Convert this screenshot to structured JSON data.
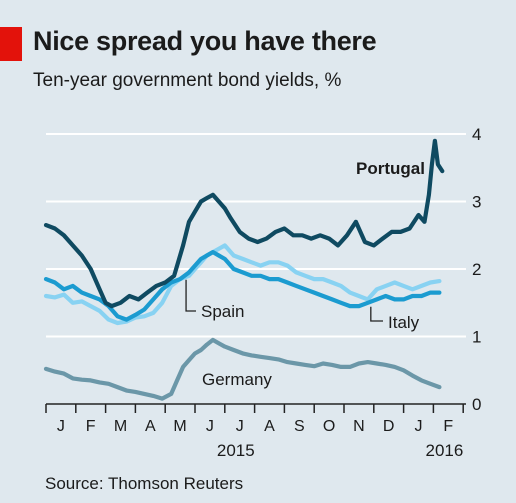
{
  "title": "Nice spread you have there",
  "subtitle": "Ten-year government bond yields, %",
  "source": "Source: Thomson Reuters",
  "colors": {
    "background": "#dfe8ee",
    "accent": "#e3120b",
    "gridline": "#ffffff",
    "Portugal": "#0f4a61",
    "Spain": "#88d2f2",
    "Italy": "#1b9bd0",
    "Germany": "#6b97a8"
  },
  "chart_data": {
    "type": "line",
    "title": "Nice spread you have there",
    "subtitle": "Ten-year government bond yields, %",
    "xlabel": "",
    "ylabel": "",
    "ylim": [
      0,
      4
    ],
    "yticks": [
      0,
      1,
      2,
      3,
      4
    ],
    "y_axis_position": "right",
    "grid": true,
    "x_ticks": [
      "J",
      "F",
      "M",
      "A",
      "M",
      "J",
      "J",
      "A",
      "S",
      "O",
      "N",
      "D",
      "J",
      "F"
    ],
    "x_year_labels": [
      {
        "label": "2015",
        "month_index": 6
      },
      {
        "label": "2016",
        "month_index": 13
      }
    ],
    "x_range_months": [
      0,
      13.7
    ],
    "series": [
      {
        "name": "Portugal",
        "label_position": "upper-right",
        "x_months": [
          0,
          0.3,
          0.6,
          0.9,
          1.2,
          1.5,
          1.8,
          2.0,
          2.2,
          2.5,
          2.8,
          3.1,
          3.4,
          3.7,
          4.0,
          4.3,
          4.6,
          4.8,
          5.0,
          5.2,
          5.4,
          5.6,
          5.8,
          6.0,
          6.2,
          6.5,
          6.8,
          7.1,
          7.4,
          7.7,
          8.0,
          8.3,
          8.6,
          8.9,
          9.2,
          9.5,
          9.8,
          10.1,
          10.4,
          10.7,
          11.0,
          11.3,
          11.6,
          11.9,
          12.2,
          12.5,
          12.7,
          12.85,
          12.95,
          13.05,
          13.15,
          13.3
        ],
        "values": [
          2.65,
          2.6,
          2.5,
          2.35,
          2.2,
          2.0,
          1.7,
          1.5,
          1.45,
          1.5,
          1.6,
          1.55,
          1.65,
          1.75,
          1.8,
          1.9,
          2.35,
          2.7,
          2.85,
          3.0,
          3.05,
          3.1,
          3.0,
          2.9,
          2.75,
          2.55,
          2.45,
          2.4,
          2.45,
          2.55,
          2.6,
          2.5,
          2.5,
          2.45,
          2.5,
          2.45,
          2.35,
          2.5,
          2.7,
          2.4,
          2.35,
          2.45,
          2.55,
          2.55,
          2.6,
          2.8,
          2.7,
          3.1,
          3.55,
          3.9,
          3.55,
          3.45
        ]
      },
      {
        "name": "Spain",
        "label_position": "mid-left",
        "x_months": [
          0,
          0.3,
          0.6,
          0.9,
          1.2,
          1.5,
          1.8,
          2.1,
          2.4,
          2.7,
          3.0,
          3.3,
          3.6,
          3.9,
          4.2,
          4.5,
          4.8,
          5.0,
          5.2,
          5.4,
          5.6,
          5.8,
          6.0,
          6.3,
          6.6,
          6.9,
          7.2,
          7.5,
          7.8,
          8.1,
          8.4,
          8.7,
          9.0,
          9.3,
          9.6,
          9.9,
          10.2,
          10.5,
          10.8,
          11.1,
          11.4,
          11.7,
          12.0,
          12.3,
          12.6,
          12.9,
          13.2
        ],
        "values": [
          1.6,
          1.58,
          1.62,
          1.5,
          1.52,
          1.45,
          1.38,
          1.25,
          1.2,
          1.22,
          1.28,
          1.3,
          1.35,
          1.5,
          1.75,
          1.85,
          1.9,
          2.0,
          2.1,
          2.2,
          2.25,
          2.3,
          2.35,
          2.2,
          2.15,
          2.1,
          2.05,
          2.1,
          2.1,
          2.05,
          1.95,
          1.9,
          1.85,
          1.85,
          1.8,
          1.75,
          1.65,
          1.6,
          1.55,
          1.7,
          1.75,
          1.8,
          1.75,
          1.7,
          1.75,
          1.8,
          1.82
        ]
      },
      {
        "name": "Italy",
        "label_position": "mid-right",
        "x_months": [
          0,
          0.3,
          0.6,
          0.9,
          1.2,
          1.5,
          1.8,
          2.1,
          2.4,
          2.7,
          3.0,
          3.3,
          3.6,
          3.9,
          4.2,
          4.5,
          4.8,
          5.0,
          5.2,
          5.4,
          5.6,
          5.8,
          6.0,
          6.3,
          6.6,
          6.9,
          7.2,
          7.5,
          7.8,
          8.1,
          8.4,
          8.7,
          9.0,
          9.3,
          9.6,
          9.9,
          10.2,
          10.5,
          10.8,
          11.1,
          11.4,
          11.7,
          12.0,
          12.3,
          12.6,
          12.9,
          13.2
        ],
        "values": [
          1.85,
          1.8,
          1.7,
          1.75,
          1.65,
          1.6,
          1.55,
          1.45,
          1.3,
          1.25,
          1.32,
          1.4,
          1.55,
          1.7,
          1.8,
          1.85,
          1.95,
          2.05,
          2.15,
          2.2,
          2.25,
          2.2,
          2.15,
          2.0,
          1.95,
          1.9,
          1.9,
          1.85,
          1.85,
          1.8,
          1.75,
          1.7,
          1.65,
          1.6,
          1.55,
          1.5,
          1.45,
          1.45,
          1.5,
          1.55,
          1.6,
          1.55,
          1.55,
          1.6,
          1.6,
          1.65,
          1.65
        ]
      },
      {
        "name": "Germany",
        "label_position": "lower-middle",
        "x_months": [
          0,
          0.3,
          0.6,
          0.9,
          1.2,
          1.5,
          1.8,
          2.1,
          2.4,
          2.7,
          3.0,
          3.3,
          3.6,
          3.9,
          4.2,
          4.4,
          4.6,
          4.8,
          5.0,
          5.2,
          5.4,
          5.6,
          5.8,
          6.0,
          6.3,
          6.6,
          6.9,
          7.2,
          7.5,
          7.8,
          8.1,
          8.4,
          8.7,
          9.0,
          9.3,
          9.6,
          9.9,
          10.2,
          10.5,
          10.8,
          11.1,
          11.4,
          11.7,
          12.0,
          12.3,
          12.6,
          12.9,
          13.2
        ],
        "values": [
          0.52,
          0.48,
          0.45,
          0.38,
          0.36,
          0.35,
          0.32,
          0.3,
          0.25,
          0.2,
          0.18,
          0.15,
          0.12,
          0.08,
          0.15,
          0.35,
          0.55,
          0.65,
          0.75,
          0.8,
          0.88,
          0.95,
          0.9,
          0.85,
          0.8,
          0.75,
          0.72,
          0.7,
          0.68,
          0.66,
          0.62,
          0.6,
          0.58,
          0.56,
          0.6,
          0.58,
          0.55,
          0.55,
          0.6,
          0.62,
          0.6,
          0.58,
          0.55,
          0.5,
          0.42,
          0.35,
          0.3,
          0.25
        ]
      }
    ]
  }
}
